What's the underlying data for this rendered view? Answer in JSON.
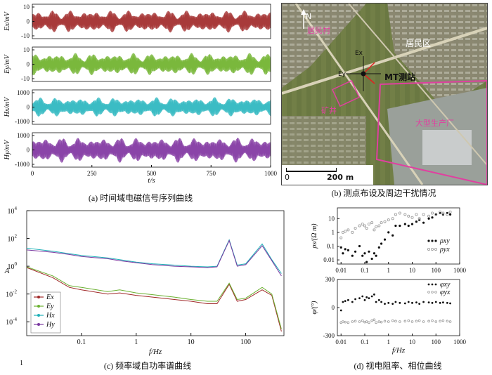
{
  "captions": {
    "a": "(a) 时间域电磁信号序列曲线",
    "b": "(b) 测点布设及周边干扰情况",
    "c": "(c) 频率域自功率谱曲线",
    "d": "(d) 视电阻率、相位曲线"
  },
  "page_number": "1",
  "map": {
    "labels": {
      "village": "居民村",
      "residential": "居民区",
      "station": "MT测站",
      "mine": "矿井",
      "factory": "大型生产厂",
      "north": "N",
      "ex": "Ex",
      "ey": "Ey"
    },
    "scale": {
      "start": "0",
      "end": "200 m"
    },
    "colors": {
      "village": "#e040a0",
      "mine": "#e040a0",
      "factory": "#e040a0",
      "residential": "#ffffff",
      "station": "#111111"
    }
  },
  "chart_data": [
    {
      "id": "a",
      "type": "line",
      "xlabel": "t/s",
      "xlim": [
        0,
        1000
      ],
      "xticks": [
        "0",
        "250",
        "500",
        "750",
        "1000"
      ],
      "panels": [
        {
          "ylabel": "Ex/mV",
          "yticks": [
            "10",
            "0",
            "-10"
          ],
          "ylim": [
            -12,
            12
          ],
          "color": "#a83a3a",
          "amplitude": 8
        },
        {
          "ylabel": "Ey/mV",
          "yticks": [
            "10",
            "0",
            "-10"
          ],
          "ylim": [
            -12,
            12
          ],
          "color": "#7ab83c",
          "amplitude": 8
        },
        {
          "ylabel": "Hx/mV",
          "yticks": [
            "1000",
            "0",
            "-1000"
          ],
          "ylim": [
            -1200,
            1200
          ],
          "color": "#3bbcc4",
          "amplitude": 700
        },
        {
          "ylabel": "Hy/mV",
          "yticks": [
            "1000",
            "0",
            "-1000"
          ],
          "ylim": [
            -1200,
            1200
          ],
          "color": "#8a44a8",
          "amplitude": 900
        }
      ]
    },
    {
      "id": "c",
      "type": "line",
      "xlabel": "f/Hz",
      "ylabel": "A",
      "xscale": "log",
      "yscale": "log",
      "xlim": [
        0.01,
        500
      ],
      "ylim": [
        1e-05,
        10000
      ],
      "xticks": [
        "0.1",
        "1",
        "10",
        "100"
      ],
      "yticks": [
        "10^4",
        "10^2",
        "10^0",
        "10^-2",
        "10^-4"
      ],
      "legend": "bottom-left",
      "series": [
        {
          "name": "Ex",
          "color": "#a02828",
          "f": [
            0.01,
            0.03,
            0.06,
            0.1,
            0.3,
            0.5,
            1,
            2,
            5,
            10,
            20,
            30,
            50,
            70,
            100,
            200,
            300,
            450
          ],
          "a": [
            0.8,
            0.15,
            0.03,
            0.02,
            0.01,
            0.012,
            0.008,
            0.006,
            0.004,
            0.003,
            0.002,
            0.002,
            0.05,
            0.003,
            0.004,
            0.02,
            0.008,
            2e-05
          ]
        },
        {
          "name": "Ey",
          "color": "#6ab030",
          "f": [
            0.01,
            0.03,
            0.06,
            0.1,
            0.3,
            0.5,
            1,
            2,
            5,
            10,
            20,
            30,
            50,
            70,
            100,
            200,
            300,
            450
          ],
          "a": [
            0.9,
            0.2,
            0.04,
            0.03,
            0.015,
            0.02,
            0.012,
            0.009,
            0.006,
            0.004,
            0.003,
            0.003,
            0.06,
            0.004,
            0.005,
            0.03,
            0.01,
            3e-05
          ]
        },
        {
          "name": "Hx",
          "color": "#20b0b8",
          "f": [
            0.01,
            0.03,
            0.06,
            0.1,
            0.3,
            0.5,
            1,
            2,
            5,
            10,
            20,
            30,
            50,
            70,
            100,
            200,
            300,
            450
          ],
          "a": [
            20,
            12,
            8,
            6,
            4,
            3,
            2,
            1.5,
            1.2,
            1,
            0.9,
            1,
            80,
            1.2,
            1.5,
            40,
            3,
            0.3
          ]
        },
        {
          "name": "Hy",
          "color": "#7a38a0",
          "f": [
            0.01,
            0.03,
            0.06,
            0.1,
            0.3,
            0.5,
            1,
            2,
            5,
            10,
            20,
            30,
            50,
            70,
            100,
            200,
            300,
            450
          ],
          "a": [
            15,
            10,
            7,
            5,
            3.5,
            2.5,
            1.8,
            1.3,
            1,
            0.9,
            0.8,
            0.9,
            70,
            1,
            1.3,
            30,
            2.5,
            0.2
          ]
        }
      ]
    },
    {
      "id": "d-resistivity",
      "type": "scatter",
      "ylabel": "ρs/(Ω m)",
      "xscale": "log",
      "yscale": "log",
      "xlim": [
        0.007,
        1000
      ],
      "ylim": [
        0.005,
        60
      ],
      "yticks": [
        "10",
        "1",
        "0.1",
        "0.01"
      ],
      "legend": "right",
      "series": [
        {
          "name": "ρxy",
          "marker": "filled",
          "color": "#111111",
          "x": [
            0.01,
            0.012,
            0.015,
            0.02,
            0.03,
            0.04,
            0.06,
            0.08,
            0.1,
            0.12,
            0.15,
            0.2,
            0.25,
            0.3,
            0.4,
            0.5,
            0.7,
            1,
            1.5,
            2,
            3,
            5,
            7,
            10,
            15,
            20,
            30,
            50,
            70,
            100,
            150,
            200,
            300,
            400
          ],
          "y": [
            0.08,
            0.03,
            0.06,
            0.05,
            0.02,
            0.04,
            0.1,
            0.02,
            0.03,
            0.007,
            0.04,
            0.012,
            0.03,
            0.02,
            0.08,
            0.15,
            0.3,
            1,
            0.6,
            3,
            3,
            4,
            3,
            4,
            6,
            8,
            5,
            10,
            12,
            20,
            25,
            20,
            25,
            20
          ]
        },
        {
          "name": "ρyx",
          "marker": "open",
          "color": "#999999",
          "x": [
            0.01,
            0.012,
            0.015,
            0.02,
            0.03,
            0.04,
            0.06,
            0.08,
            0.1,
            0.12,
            0.15,
            0.2,
            0.25,
            0.3,
            0.4,
            0.5,
            0.7,
            1,
            1.5,
            2,
            3,
            5,
            7,
            10,
            15,
            20,
            30,
            50,
            70,
            100,
            150,
            200,
            300,
            400
          ],
          "y": [
            0.4,
            1,
            1.2,
            1.5,
            1,
            2,
            3,
            4,
            3,
            2,
            4,
            5,
            1.5,
            2.5,
            3,
            5,
            6,
            8,
            10,
            20,
            25,
            20,
            15,
            12,
            20,
            10,
            20,
            15,
            25,
            20,
            30,
            25,
            20,
            30
          ]
        }
      ]
    },
    {
      "id": "d-phase",
      "type": "scatter",
      "xlabel": "f/Hz",
      "ylabel": "φ/(°)",
      "xscale": "log",
      "xlim": [
        0.007,
        1000
      ],
      "ylim": [
        -300,
        300
      ],
      "xticks": [
        "0.01",
        "0.1",
        "1",
        "10",
        "100",
        "1000"
      ],
      "yticks": [
        "300",
        "0",
        "-300"
      ],
      "legend": "top-right",
      "series": [
        {
          "name": "φxy",
          "marker": "filled",
          "color": "#111111",
          "x": [
            0.01,
            0.012,
            0.015,
            0.02,
            0.03,
            0.04,
            0.06,
            0.08,
            0.1,
            0.12,
            0.15,
            0.2,
            0.25,
            0.3,
            0.4,
            0.5,
            0.7,
            1,
            1.5,
            2,
            3,
            5,
            7,
            10,
            15,
            20,
            30,
            50,
            70,
            100,
            150,
            200,
            300,
            400
          ],
          "y": [
            -30,
            60,
            70,
            80,
            60,
            90,
            100,
            120,
            80,
            110,
            100,
            120,
            140,
            60,
            80,
            60,
            40,
            50,
            40,
            60,
            50,
            45,
            60,
            50,
            55,
            40,
            60,
            55,
            50,
            60,
            50,
            55,
            50,
            45
          ]
        },
        {
          "name": "φyx",
          "marker": "open",
          "color": "#999999",
          "x": [
            0.01,
            0.012,
            0.015,
            0.02,
            0.03,
            0.04,
            0.06,
            0.08,
            0.1,
            0.12,
            0.15,
            0.2,
            0.25,
            0.3,
            0.4,
            0.5,
            0.7,
            1,
            1.5,
            2,
            3,
            5,
            7,
            10,
            15,
            20,
            30,
            50,
            70,
            100,
            150,
            200,
            300,
            400
          ],
          "y": [
            -160,
            -150,
            -155,
            -160,
            -150,
            -145,
            -150,
            -140,
            -155,
            -150,
            -160,
            -140,
            -130,
            -160,
            -150,
            -155,
            -145,
            -150,
            -140,
            -145,
            -150,
            -145,
            -140,
            -150,
            -145,
            -140,
            -150,
            -145,
            -140,
            -150,
            -145,
            -140,
            -145,
            -150
          ]
        }
      ]
    }
  ]
}
